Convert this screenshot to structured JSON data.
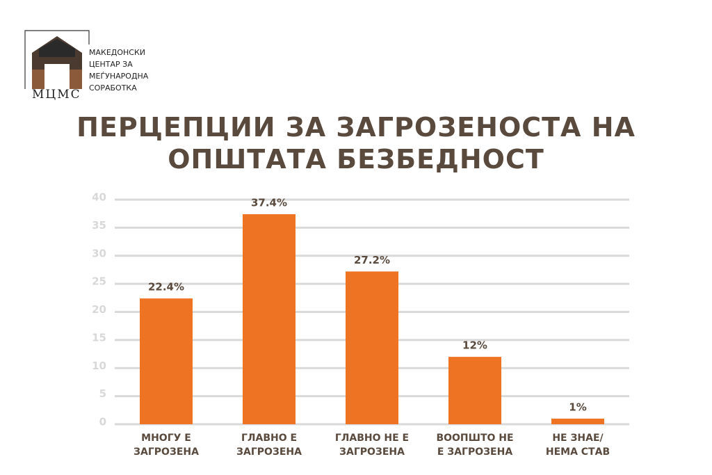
{
  "logo": {
    "name": "МАКЕДОНСКИ\nЦЕНТАР ЗА\nМЕЃУНАРОДНА\nСОРАБОТКА",
    "abbr": "МЦМС"
  },
  "chart_data": {
    "type": "bar",
    "title": "ПЕРЦЕПЦИИ ЗА ЗАГРОЗЕНОСТА НА\nОПШТАТА БЕЗБЕДНОСТ",
    "categories": [
      "МНОГУ Е\nЗАГРОЗЕНА",
      "ГЛАВНО Е\nЗАГРОЗЕНА",
      "ГЛАВНО НЕ Е\nЗАГРОЗЕНА",
      "ВООПШТО НЕ\nЕ ЗАГРОЗЕНА",
      "НЕ ЗНАЕ/\nНЕМА СТАВ"
    ],
    "values": [
      22.4,
      37.4,
      27.2,
      12,
      1
    ],
    "value_labels": [
      "22.4%",
      "37.4%",
      "27.2%",
      "12%",
      "1%"
    ],
    "color": "#ee7423",
    "ylim": [
      0,
      40
    ],
    "yticks": [
      0,
      5,
      10,
      15,
      20,
      25,
      30,
      35,
      40
    ],
    "grid": true
  }
}
